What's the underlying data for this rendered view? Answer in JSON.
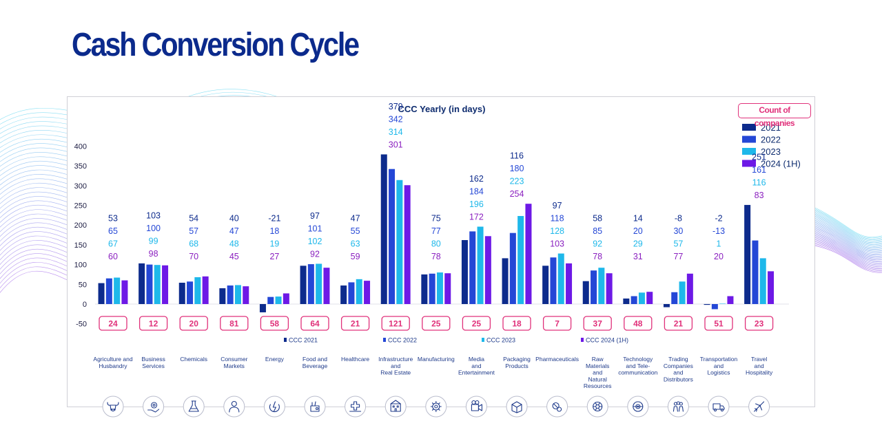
{
  "page": {
    "title": "Cash Conversion Cycle"
  },
  "legend_box": {
    "count_label": "Count of companies"
  },
  "colors": {
    "y2021": "#0d2b8c",
    "y2022": "#2447d6",
    "y2023": "#1eb8ea",
    "y2024": "#6d19e6",
    "label2024": "#8a1fbf",
    "accent": "#e0307a",
    "title": "#0b2a8c"
  },
  "chart_data": {
    "type": "bar",
    "title": "CCC Yearly (in days)",
    "ylim": [
      -50,
      400
    ],
    "yticks": [
      -50,
      0,
      50,
      100,
      150,
      200,
      250,
      300,
      350,
      400
    ],
    "legend": [
      "2021",
      "2022",
      "2023",
      "2024 (1H)"
    ],
    "bottom_legend": [
      "CCC 2021",
      "CCC 2022",
      "CCC 2023",
      "CCC 2024 (1H)"
    ],
    "categories": [
      {
        "label": [
          "Agriculture and",
          "Husbandry"
        ],
        "icon": "bull-icon",
        "count": "24",
        "values": [
          53,
          65,
          67,
          60
        ]
      },
      {
        "label": [
          "Business",
          "Services"
        ],
        "icon": "gear-hand-icon",
        "count": "12",
        "values": [
          103,
          100,
          99,
          98
        ]
      },
      {
        "label": [
          "Chemicals"
        ],
        "icon": "flask-icon",
        "count": "20",
        "values": [
          54,
          57,
          68,
          70
        ]
      },
      {
        "label": [
          "Consumer",
          "Markets"
        ],
        "icon": "consumer-icon",
        "count": "81",
        "values": [
          40,
          47,
          48,
          45
        ]
      },
      {
        "label": [
          "Energy"
        ],
        "icon": "energy-icon",
        "count": "58",
        "values": [
          -21,
          18,
          19,
          27
        ]
      },
      {
        "label": [
          "Food and",
          "Beverage"
        ],
        "icon": "food-icon",
        "count": "64",
        "values": [
          97,
          101,
          102,
          92
        ]
      },
      {
        "label": [
          "Healthcare"
        ],
        "icon": "healthcare-icon",
        "count": "21",
        "values": [
          47,
          55,
          63,
          59
        ]
      },
      {
        "label": [
          "Infrastructure",
          "and",
          "Real Estate"
        ],
        "icon": "building-icon",
        "count": "121",
        "values": [
          379,
          342,
          314,
          301
        ]
      },
      {
        "label": [
          "Manufacturing"
        ],
        "icon": "cog-icon",
        "count": "25",
        "values": [
          75,
          77,
          80,
          78
        ]
      },
      {
        "label": [
          "Media",
          "and",
          "Entertainment"
        ],
        "icon": "camera-icon",
        "count": "25",
        "values": [
          162,
          184,
          196,
          172
        ]
      },
      {
        "label": [
          "Packaging",
          "Products"
        ],
        "icon": "box-icon",
        "count": "18",
        "values": [
          116,
          180,
          223,
          254
        ]
      },
      {
        "label": [
          "Pharmaceuticals"
        ],
        "icon": "pills-icon",
        "count": "7",
        "values": [
          97,
          118,
          128,
          103
        ]
      },
      {
        "label": [
          "Raw",
          "Materials",
          "and",
          "Natural",
          "Resources"
        ],
        "icon": "resources-icon",
        "count": "37",
        "values": [
          58,
          85,
          92,
          78
        ]
      },
      {
        "label": [
          "Technology",
          "and Tele-",
          "communication"
        ],
        "icon": "tech-icon",
        "count": "48",
        "values": [
          14,
          20,
          29,
          31
        ]
      },
      {
        "label": [
          "Trading",
          "Companies",
          "and",
          "Distributors"
        ],
        "icon": "people-icon",
        "count": "21",
        "values": [
          -8,
          30,
          57,
          77
        ]
      },
      {
        "label": [
          "Transportation",
          "and",
          "Logistics"
        ],
        "icon": "truck-icon",
        "count": "51",
        "values": [
          -2,
          -13,
          1,
          20
        ]
      },
      {
        "label": [
          "Travel",
          "and",
          "Hospitality"
        ],
        "icon": "plane-icon",
        "count": "23",
        "values": [
          251,
          161,
          116,
          83
        ]
      }
    ]
  }
}
